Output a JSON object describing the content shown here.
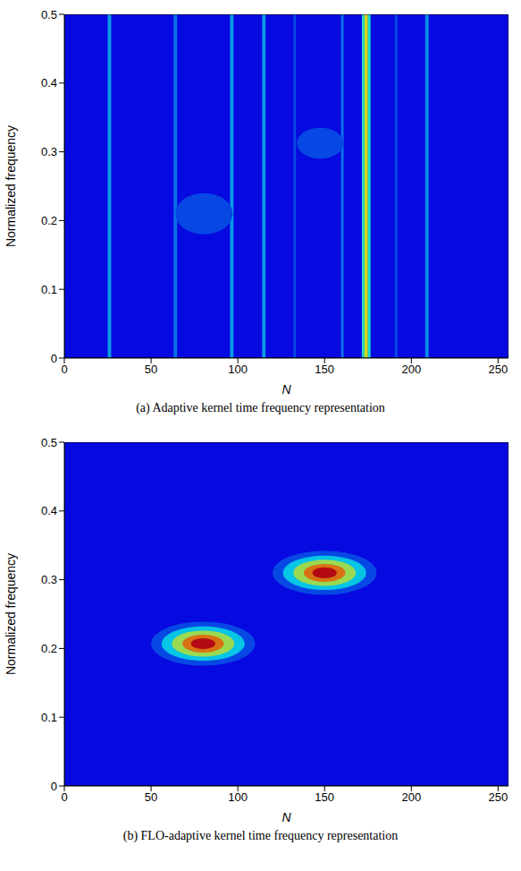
{
  "chart_data": [
    {
      "type": "heatmap",
      "title": "(a) Adaptive kernel time frequency representation",
      "x_label": "N",
      "y_label": "Normalized frequency",
      "xlim": [
        0,
        256
      ],
      "xticks": [
        0,
        50,
        100,
        150,
        200,
        250
      ],
      "ylim": [
        0,
        0.5
      ],
      "yticks": [
        0,
        0.1,
        0.2,
        0.3,
        0.4,
        0.5
      ],
      "background": 0.12,
      "cells": [
        {
          "x": [
            25,
            27
          ],
          "y": [
            0,
            0.5
          ],
          "value": 0.3
        },
        {
          "x": [
            63,
            65
          ],
          "y": [
            0,
            0.5
          ],
          "value": 0.25
        },
        {
          "x": [
            95.5,
            97.5
          ],
          "y": [
            0,
            0.5
          ],
          "value": 0.3
        },
        {
          "x": [
            114,
            116
          ],
          "y": [
            0,
            0.5
          ],
          "value": 0.3
        },
        {
          "x": [
            132,
            133.5
          ],
          "y": [
            0,
            0.5
          ],
          "value": 0.2
        },
        {
          "x": [
            159.5,
            161
          ],
          "y": [
            0,
            0.5
          ],
          "value": 0.25
        },
        {
          "x": [
            171.5,
            173
          ],
          "y": [
            0,
            0.5
          ],
          "value": 0.42
        },
        {
          "x": [
            173,
            175
          ],
          "y": [
            0,
            0.5
          ],
          "value": 0.62
        },
        {
          "x": [
            175,
            176.5
          ],
          "y": [
            0,
            0.5
          ],
          "value": 0.4
        },
        {
          "x": [
            190.5,
            192
          ],
          "y": [
            0,
            0.5
          ],
          "value": 0.2
        },
        {
          "x": [
            208,
            210
          ],
          "y": [
            0,
            0.5
          ],
          "value": 0.28
        }
      ],
      "blobs": [
        {
          "x": [
            64,
            97
          ],
          "y": [
            0.18,
            0.24
          ],
          "value": 0.2
        },
        {
          "x": [
            134,
            161
          ],
          "y": [
            0.29,
            0.335
          ],
          "value": 0.2
        }
      ]
    },
    {
      "type": "heatmap",
      "title": "(b) FLO-adaptive kernel time frequency representation",
      "x_label": "N",
      "y_label": "Normalized frequency",
      "xlim": [
        0,
        256
      ],
      "xticks": [
        0,
        50,
        100,
        150,
        200,
        250
      ],
      "ylim": [
        0,
        0.5
      ],
      "yticks": [
        0,
        0.1,
        0.2,
        0.3,
        0.4,
        0.5
      ],
      "background": 0.12,
      "cells": [],
      "blobs": [
        {
          "x": [
            50,
            110
          ],
          "y": [
            0.175,
            0.239
          ],
          "value": 0.2
        },
        {
          "x": [
            56,
            104
          ],
          "y": [
            0.182,
            0.232
          ],
          "value": 0.35
        },
        {
          "x": [
            62,
            98
          ],
          "y": [
            0.188,
            0.226
          ],
          "value": 0.55
        },
        {
          "x": [
            68,
            92
          ],
          "y": [
            0.194,
            0.22
          ],
          "value": 0.75
        },
        {
          "x": [
            73,
            87
          ],
          "y": [
            0.199,
            0.215
          ],
          "value": 0.92
        },
        {
          "x": [
            120,
            180
          ],
          "y": [
            0.278,
            0.342
          ],
          "value": 0.2
        },
        {
          "x": [
            126,
            174
          ],
          "y": [
            0.285,
            0.335
          ],
          "value": 0.35
        },
        {
          "x": [
            132,
            168
          ],
          "y": [
            0.291,
            0.329
          ],
          "value": 0.55
        },
        {
          "x": [
            138,
            162
          ],
          "y": [
            0.297,
            0.323
          ],
          "value": 0.75
        },
        {
          "x": [
            143,
            157
          ],
          "y": [
            0.302,
            0.318
          ],
          "value": 0.92
        }
      ]
    }
  ]
}
